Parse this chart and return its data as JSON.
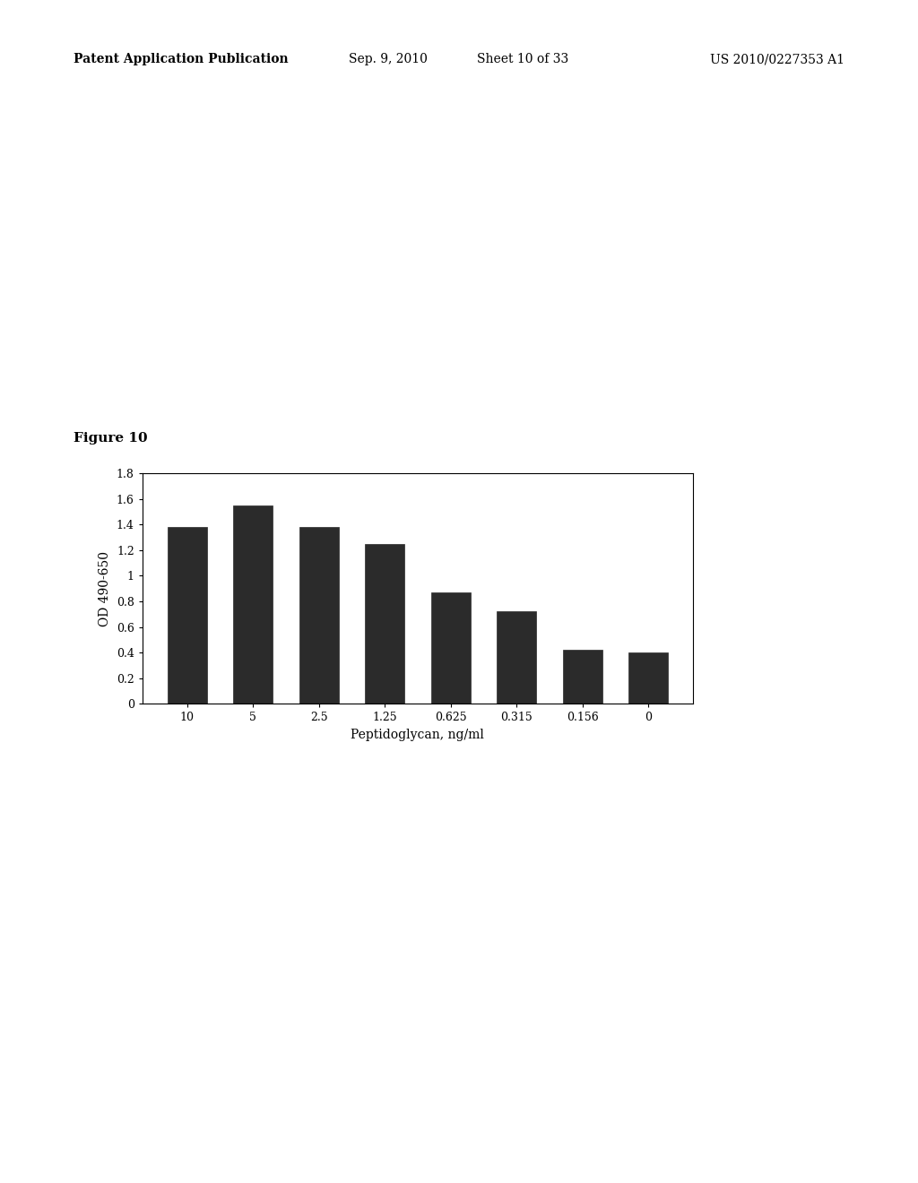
{
  "categories": [
    "10",
    "5",
    "2.5",
    "1.25",
    "0.625",
    "0.315",
    "0.156",
    "0"
  ],
  "values": [
    1.38,
    1.55,
    1.38,
    1.25,
    0.87,
    0.72,
    0.42,
    0.4
  ],
  "bar_color": "#2b2b2b",
  "xlabel": "Peptidoglycan, ng/ml",
  "ylabel": "OD 490-650",
  "ylim": [
    0,
    1.8
  ],
  "yticks": [
    0,
    0.2,
    0.4,
    0.6,
    0.8,
    1.0,
    1.2,
    1.4,
    1.6,
    1.8
  ],
  "figure_label": "Figure 10",
  "header_left": "Patent Application Publication",
  "header_center": "Sep. 9, 2010",
  "header_sheet": "Sheet 10 of 33",
  "header_right": "US 2010/0227353 A1",
  "bg_color": "#ffffff",
  "bar_width": 0.6,
  "figure_label_fontsize": 11,
  "axis_fontsize": 10,
  "tick_fontsize": 9,
  "header_fontsize": 10
}
